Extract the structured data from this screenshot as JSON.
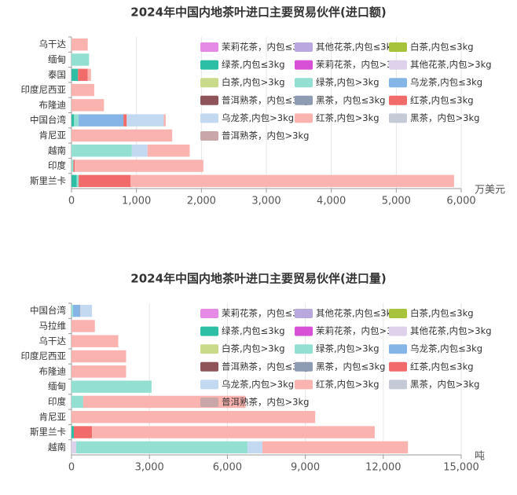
{
  "chart_data": [
    {
      "type": "stacked-bar-horizontal",
      "title": "2024年中国内地茶叶进口主要贸易伙伴(进口额)",
      "x_label": "万美元",
      "categories": [
        "乌干达",
        "缅甸",
        "泰国",
        "印度尼西亚",
        "布隆迪",
        "中国台湾",
        "肯尼亚",
        "越南",
        "印度",
        "斯里兰卡"
      ],
      "xlim": [
        0,
        6000
      ],
      "xticks": [
        0,
        {
          "value": 1000,
          "label": "1,000"
        },
        {
          "value": 2000,
          "label": "2,000"
        },
        {
          "value": 3000,
          "label": "3,000"
        },
        {
          "value": 4000,
          "label": "4,000"
        },
        {
          "value": 5000,
          "label": "5,000"
        },
        {
          "value": 6000,
          "label": "6,000"
        }
      ],
      "grid": true,
      "legend": "top-right",
      "series": [
        {
          "name": "茉莉花茶，内包≤3kg",
          "color": "#e58be6",
          "values": [
            0,
            0,
            0,
            0,
            0,
            0,
            0,
            0,
            0,
            0
          ]
        },
        {
          "name": "其他花茶,内包≤3kg",
          "color": "#b9a7e0",
          "values": [
            0,
            0,
            0,
            0,
            0,
            0,
            0,
            0,
            0,
            0
          ]
        },
        {
          "name": "白茶,内包≤3kg",
          "color": "#a7c23b",
          "values": [
            0,
            0,
            0,
            0,
            0,
            0,
            0,
            0,
            0,
            0
          ]
        },
        {
          "name": "绿茶,内包≤3kg",
          "color": "#2dbfa5",
          "values": [
            0,
            0,
            100,
            0,
            0,
            40,
            0,
            0,
            0,
            80
          ]
        },
        {
          "name": "茉莉花茶，内包>3kg",
          "color": "#d850d6",
          "values": [
            0,
            0,
            0,
            0,
            0,
            0,
            0,
            0,
            0,
            0
          ]
        },
        {
          "name": "其他花茶,内包>3kg",
          "color": "#ddd1ec",
          "values": [
            0,
            0,
            0,
            0,
            0,
            0,
            0,
            0,
            0,
            0
          ]
        },
        {
          "name": "白茶,内包>3kg",
          "color": "#c9da8b",
          "values": [
            0,
            0,
            0,
            0,
            0,
            0,
            0,
            0,
            0,
            0
          ]
        },
        {
          "name": "绿茶,内包>3kg",
          "color": "#93e0d3",
          "values": [
            0,
            270,
            0,
            0,
            0,
            70,
            0,
            930,
            30,
            30
          ]
        },
        {
          "name": "乌龙茶,内包≤3kg",
          "color": "#85b5e6",
          "values": [
            0,
            0,
            0,
            0,
            0,
            690,
            0,
            0,
            0,
            0
          ]
        },
        {
          "name": "普洱熟茶，内包≤3kg",
          "color": "#8e5459",
          "values": [
            0,
            0,
            0,
            0,
            0,
            0,
            0,
            0,
            0,
            0
          ]
        },
        {
          "name": "黑茶，内包≤3kg",
          "color": "#8d9cb3",
          "values": [
            0,
            0,
            0,
            0,
            0,
            0,
            0,
            0,
            0,
            0
          ]
        },
        {
          "name": "红茶,内包≤3kg",
          "color": "#f26b6b",
          "values": [
            0,
            0,
            150,
            0,
            0,
            50,
            0,
            0,
            20,
            800
          ]
        },
        {
          "name": "乌龙茶,内包>3kg",
          "color": "#c3d9f1",
          "values": [
            0,
            0,
            0,
            0,
            0,
            570,
            0,
            240,
            0,
            0
          ]
        },
        {
          "name": "红茶,内包>3kg",
          "color": "#fbb3b0",
          "values": [
            250,
            0,
            50,
            350,
            500,
            30,
            1550,
            650,
            1980,
            4980
          ]
        },
        {
          "name": "黑茶，内包>3kg",
          "color": "#c5cad7",
          "values": [
            0,
            0,
            0,
            0,
            0,
            0,
            0,
            0,
            0,
            0
          ]
        },
        {
          "name": "普洱熟茶，内包>3kg",
          "color": "#c9a7a9",
          "values": [
            0,
            0,
            0,
            0,
            0,
            0,
            0,
            0,
            0,
            0
          ]
        }
      ]
    },
    {
      "type": "stacked-bar-horizontal",
      "title": "2024年中国内地茶叶进口主要贸易伙伴(进口量)",
      "x_label": "吨",
      "categories": [
        "中国台湾",
        "马拉维",
        "乌干达",
        "印度尼西亚",
        "布隆迪",
        "缅甸",
        "印度",
        "肯尼亚",
        "斯里兰卡",
        "越南"
      ],
      "xlim": [
        0,
        15000
      ],
      "xticks": [
        0,
        {
          "value": 3000,
          "label": "3,000"
        },
        {
          "value": 6000,
          "label": "6,000"
        },
        {
          "value": 9000,
          "label": "9,000"
        },
        {
          "value": 12000,
          "label": "12,000"
        },
        {
          "value": 15000,
          "label": "15,000"
        }
      ],
      "grid": true,
      "legend": "top-right",
      "series": [
        {
          "name": "茉莉花茶，内包≤3kg",
          "color": "#e58be6",
          "values": [
            0,
            0,
            0,
            0,
            0,
            0,
            0,
            0,
            0,
            0
          ]
        },
        {
          "name": "其他花茶,内包≤3kg",
          "color": "#b9a7e0",
          "values": [
            0,
            0,
            0,
            0,
            0,
            0,
            0,
            0,
            0,
            0
          ]
        },
        {
          "name": "白茶,内包≤3kg",
          "color": "#a7c23b",
          "values": [
            0,
            0,
            0,
            0,
            0,
            0,
            0,
            0,
            0,
            0
          ]
        },
        {
          "name": "绿茶,内包≤3kg",
          "color": "#2dbfa5",
          "values": [
            0,
            0,
            0,
            0,
            0,
            0,
            0,
            0,
            90,
            0
          ]
        },
        {
          "name": "茉莉花茶，内包>3kg",
          "color": "#d850d6",
          "values": [
            0,
            0,
            0,
            0,
            0,
            0,
            0,
            0,
            0,
            0
          ]
        },
        {
          "name": "其他花茶,内包>3kg",
          "color": "#ddd1ec",
          "values": [
            0,
            0,
            0,
            0,
            0,
            0,
            0,
            0,
            0,
            180
          ]
        },
        {
          "name": "白茶,内包>3kg",
          "color": "#c9da8b",
          "values": [
            0,
            0,
            0,
            0,
            0,
            0,
            0,
            0,
            0,
            0
          ]
        },
        {
          "name": "绿茶,内包>3kg",
          "color": "#93e0d3",
          "values": [
            60,
            0,
            0,
            0,
            0,
            3080,
            450,
            0,
            0,
            6600
          ]
        },
        {
          "name": "乌龙茶,内包≤3kg",
          "color": "#85b5e6",
          "values": [
            250,
            0,
            0,
            0,
            0,
            0,
            0,
            0,
            0,
            0
          ]
        },
        {
          "name": "普洱熟茶，内包≤3kg",
          "color": "#8e5459",
          "values": [
            0,
            0,
            0,
            0,
            0,
            0,
            0,
            0,
            0,
            0
          ]
        },
        {
          "name": "黑茶，内包≤3kg",
          "color": "#8d9cb3",
          "values": [
            30,
            0,
            0,
            0,
            0,
            0,
            0,
            0,
            0,
            0
          ]
        },
        {
          "name": "红茶,内包≤3kg",
          "color": "#f26b6b",
          "values": [
            0,
            0,
            0,
            0,
            0,
            0,
            0,
            0,
            700,
            0
          ]
        },
        {
          "name": "乌龙茶,内包>3kg",
          "color": "#c3d9f1",
          "values": [
            450,
            0,
            0,
            0,
            0,
            0,
            0,
            0,
            0,
            570
          ]
        },
        {
          "name": "红茶,内包>3kg",
          "color": "#fbb3b0",
          "values": [
            0,
            900,
            1800,
            2100,
            2100,
            0,
            6250,
            9380,
            10880,
            5600
          ]
        },
        {
          "name": "黑茶，内包>3kg",
          "color": "#c5cad7",
          "values": [
            0,
            0,
            0,
            0,
            0,
            0,
            0,
            0,
            0,
            0
          ]
        },
        {
          "name": "普洱熟茶，内包>3kg",
          "color": "#c9a7a9",
          "values": [
            0,
            0,
            0,
            0,
            0,
            0,
            0,
            0,
            0,
            0
          ]
        }
      ]
    }
  ]
}
